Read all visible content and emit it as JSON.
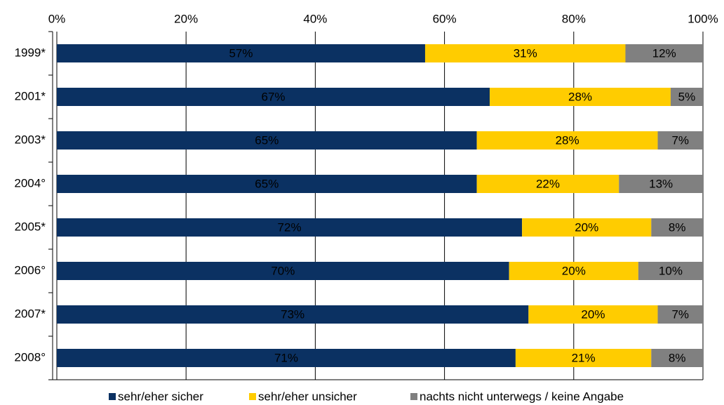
{
  "chart_data": {
    "type": "stacked-bar-horizontal",
    "categories": [
      "1999*",
      "2001*",
      "2003*",
      "2004°",
      "2005*",
      "2006°",
      "2007*",
      "2008°"
    ],
    "series": [
      {
        "name": "sehr/eher sicher",
        "color": "#0b3162",
        "values": [
          57,
          67,
          65,
          65,
          72,
          70,
          73,
          71
        ],
        "value_labels": [
          "57%",
          "67%",
          "65%",
          "65%",
          "72%",
          "70%",
          "73%",
          "71%"
        ]
      },
      {
        "name": "sehr/eher unsicher",
        "color": "#ffcc00",
        "values": [
          31,
          28,
          28,
          22,
          20,
          20,
          20,
          21
        ],
        "value_labels": [
          "31%",
          "28%",
          "28%",
          "22%",
          "20%",
          "20%",
          "20%",
          "21%"
        ]
      },
      {
        "name": "nachts nicht unterwegs / keine Angabe",
        "color": "#808080",
        "values": [
          12,
          5,
          7,
          13,
          8,
          10,
          7,
          8
        ],
        "value_labels": [
          "12%",
          "5%",
          "7%",
          "13%",
          "8%",
          "10%",
          "7%",
          "8%"
        ]
      }
    ],
    "xlim": [
      0,
      100
    ],
    "xticks": [
      {
        "value": 0,
        "label": "0%"
      },
      {
        "value": 20,
        "label": "20%"
      },
      {
        "value": 40,
        "label": "40%"
      },
      {
        "value": 60,
        "label": "60%"
      },
      {
        "value": 80,
        "label": "80%"
      },
      {
        "value": 100,
        "label": "100%"
      }
    ],
    "grid": true
  }
}
